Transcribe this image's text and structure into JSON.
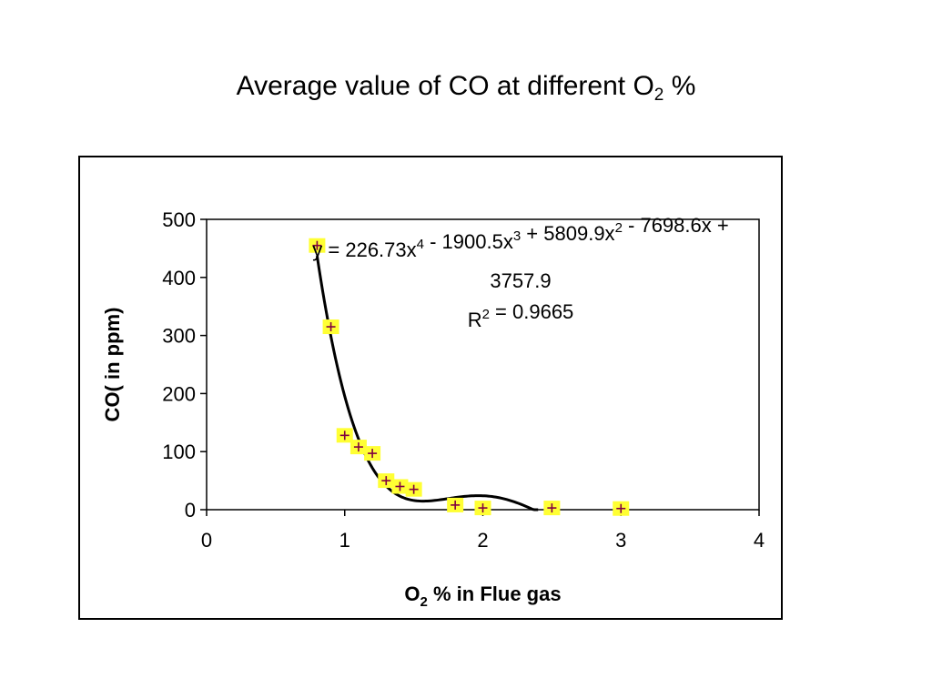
{
  "title": {
    "main": "Average value of CO at different O",
    "sub": "2",
    "suffix": " %"
  },
  "chart_data": {
    "type": "scatter",
    "x": [
      0.8,
      0.9,
      1.0,
      1.1,
      1.2,
      1.3,
      1.4,
      1.5,
      1.8,
      2.0,
      2.5,
      3.0
    ],
    "y": [
      455,
      315,
      128,
      108,
      97,
      50,
      40,
      35,
      8,
      3,
      3,
      2
    ],
    "xlim": [
      0,
      4
    ],
    "ylim": [
      0,
      500
    ],
    "xticks": [
      "0",
      "1",
      "2",
      "3",
      "4"
    ],
    "yticks": [
      "0",
      "100",
      "200",
      "300",
      "400",
      "500"
    ],
    "xlabel": {
      "main": "O",
      "sub": "2",
      "suffix": " % in Flue gas"
    },
    "ylabel": "CO( in ppm)",
    "grid": false,
    "trendline": {
      "type": "polynomial",
      "order": 4,
      "x_range": [
        0.8,
        2.4
      ],
      "equation_line1": "y = 226.73x4 - 1900.5x3 + 5809.9x2 - 7698.6x +",
      "equation_line2": "3757.9",
      "r_squared": "R2 = 0.9665"
    },
    "marker_fill": "#ffff33",
    "marker_stroke": "#800040",
    "line_color": "#000000"
  }
}
